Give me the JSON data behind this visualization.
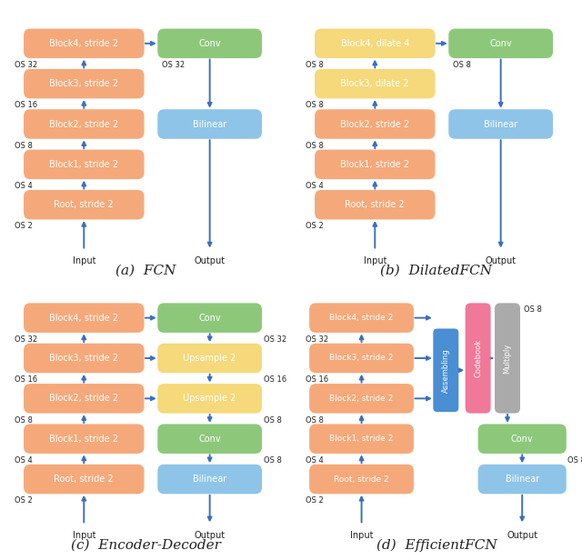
{
  "colors": {
    "orange": "#F5A97A",
    "yellow": "#F5D97A",
    "green": "#8DC87A",
    "blue_box": "#8EC4E8",
    "blue_assem": "#4A8ED4",
    "pink": "#F07898",
    "gray": "#AAAAAA",
    "arrow": "#3B70C0",
    "text_white": "#FFFFFF",
    "text_black": "#222222",
    "bg": "#FFFFFF"
  },
  "subtitles": [
    "(a)  FCN",
    "(b)  DilatedFCN",
    "(c)  Encoder-Decoder",
    "(d)  EfficientFCN"
  ],
  "subtitle_font": 11
}
